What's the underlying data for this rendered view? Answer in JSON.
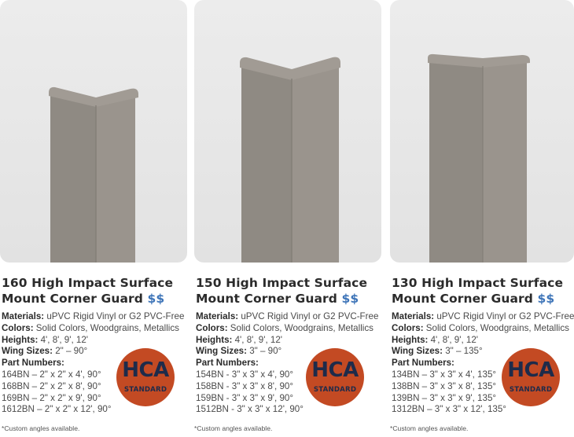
{
  "products": [
    {
      "title_line1": "160 High Impact Surface",
      "title_line2": "Mount Corner Guard",
      "price": "$$",
      "materials_label": "Materials:",
      "materials_value": " uPVC Rigid Vinyl or G2 PVC-Free",
      "colors_label": "Colors:",
      "colors_value": " Solid Colors, Woodgrains, Metallics",
      "heights_label": "Heights:",
      "heights_value": " 4', 8', 9', 12'",
      "wings_label": "Wing Sizes:",
      "wings_value": " 2\" – 90°",
      "parts_label": "Part Numbers:",
      "parts": [
        "164BN – 2\" x 2\" x 4', 90°",
        "168BN – 2\" x 2\" x 8', 90°",
        "169BN – 2\" x 2\" x 9', 90°",
        "1612BN – 2\" x 2\" x 12', 90°"
      ],
      "note": "*Custom angles available.",
      "badge_top": "HCA",
      "badge_bottom": "STANDARD"
    },
    {
      "title_line1": "150 High Impact Surface",
      "title_line2": "Mount Corner Guard",
      "price": "$$",
      "materials_label": "Materials:",
      "materials_value": " uPVC Rigid Vinyl or G2 PVC-Free",
      "colors_label": "Colors:",
      "colors_value": " Solid Colors, Woodgrains, Metallics",
      "heights_label": "Heights:",
      "heights_value": " 4', 8', 9', 12'",
      "wings_label": "Wing Sizes:",
      "wings_value": " 3\" – 90°",
      "parts_label": "Part Numbers:",
      "parts": [
        "154BN - 3\" x 3\" x 4', 90°",
        "158BN - 3\" x 3\" x 8', 90°",
        "159BN - 3\" x 3\" x 9', 90°",
        "1512BN - 3\" x 3\" x 12', 90°"
      ],
      "note": "*Custom angles available.",
      "badge_top": "HCA",
      "badge_bottom": "STANDARD"
    },
    {
      "title_line1": "130 High Impact Surface",
      "title_line2": "Mount Corner Guard",
      "price": "$$",
      "materials_label": "Materials:",
      "materials_value": " uPVC Rigid Vinyl or G2 PVC-Free",
      "colors_label": "Colors:",
      "colors_value": " Solid Colors, Woodgrains, Metallics",
      "heights_label": "Heights:",
      "heights_value": " 4', 8', 9', 12'",
      "wings_label": "Wing Sizes:",
      "wings_value": " 3\" – 135°",
      "parts_label": "Part Numbers:",
      "parts": [
        "134BN – 3\" x 3\" x 4', 135°",
        "138BN – 3\" x 3\" x 8', 135°",
        "139BN – 3\" x 3\" x 9', 135°",
        "1312BN – 3\" x 3\" x 12', 135°"
      ],
      "note": "*Custom angles available.",
      "badge_top": "HCA",
      "badge_bottom": "STANDARD"
    }
  ],
  "colors": {
    "price": "#3d74b8",
    "badge": "#c34a23",
    "badge_text": "#1e2b4a",
    "guard": "#908a83"
  }
}
